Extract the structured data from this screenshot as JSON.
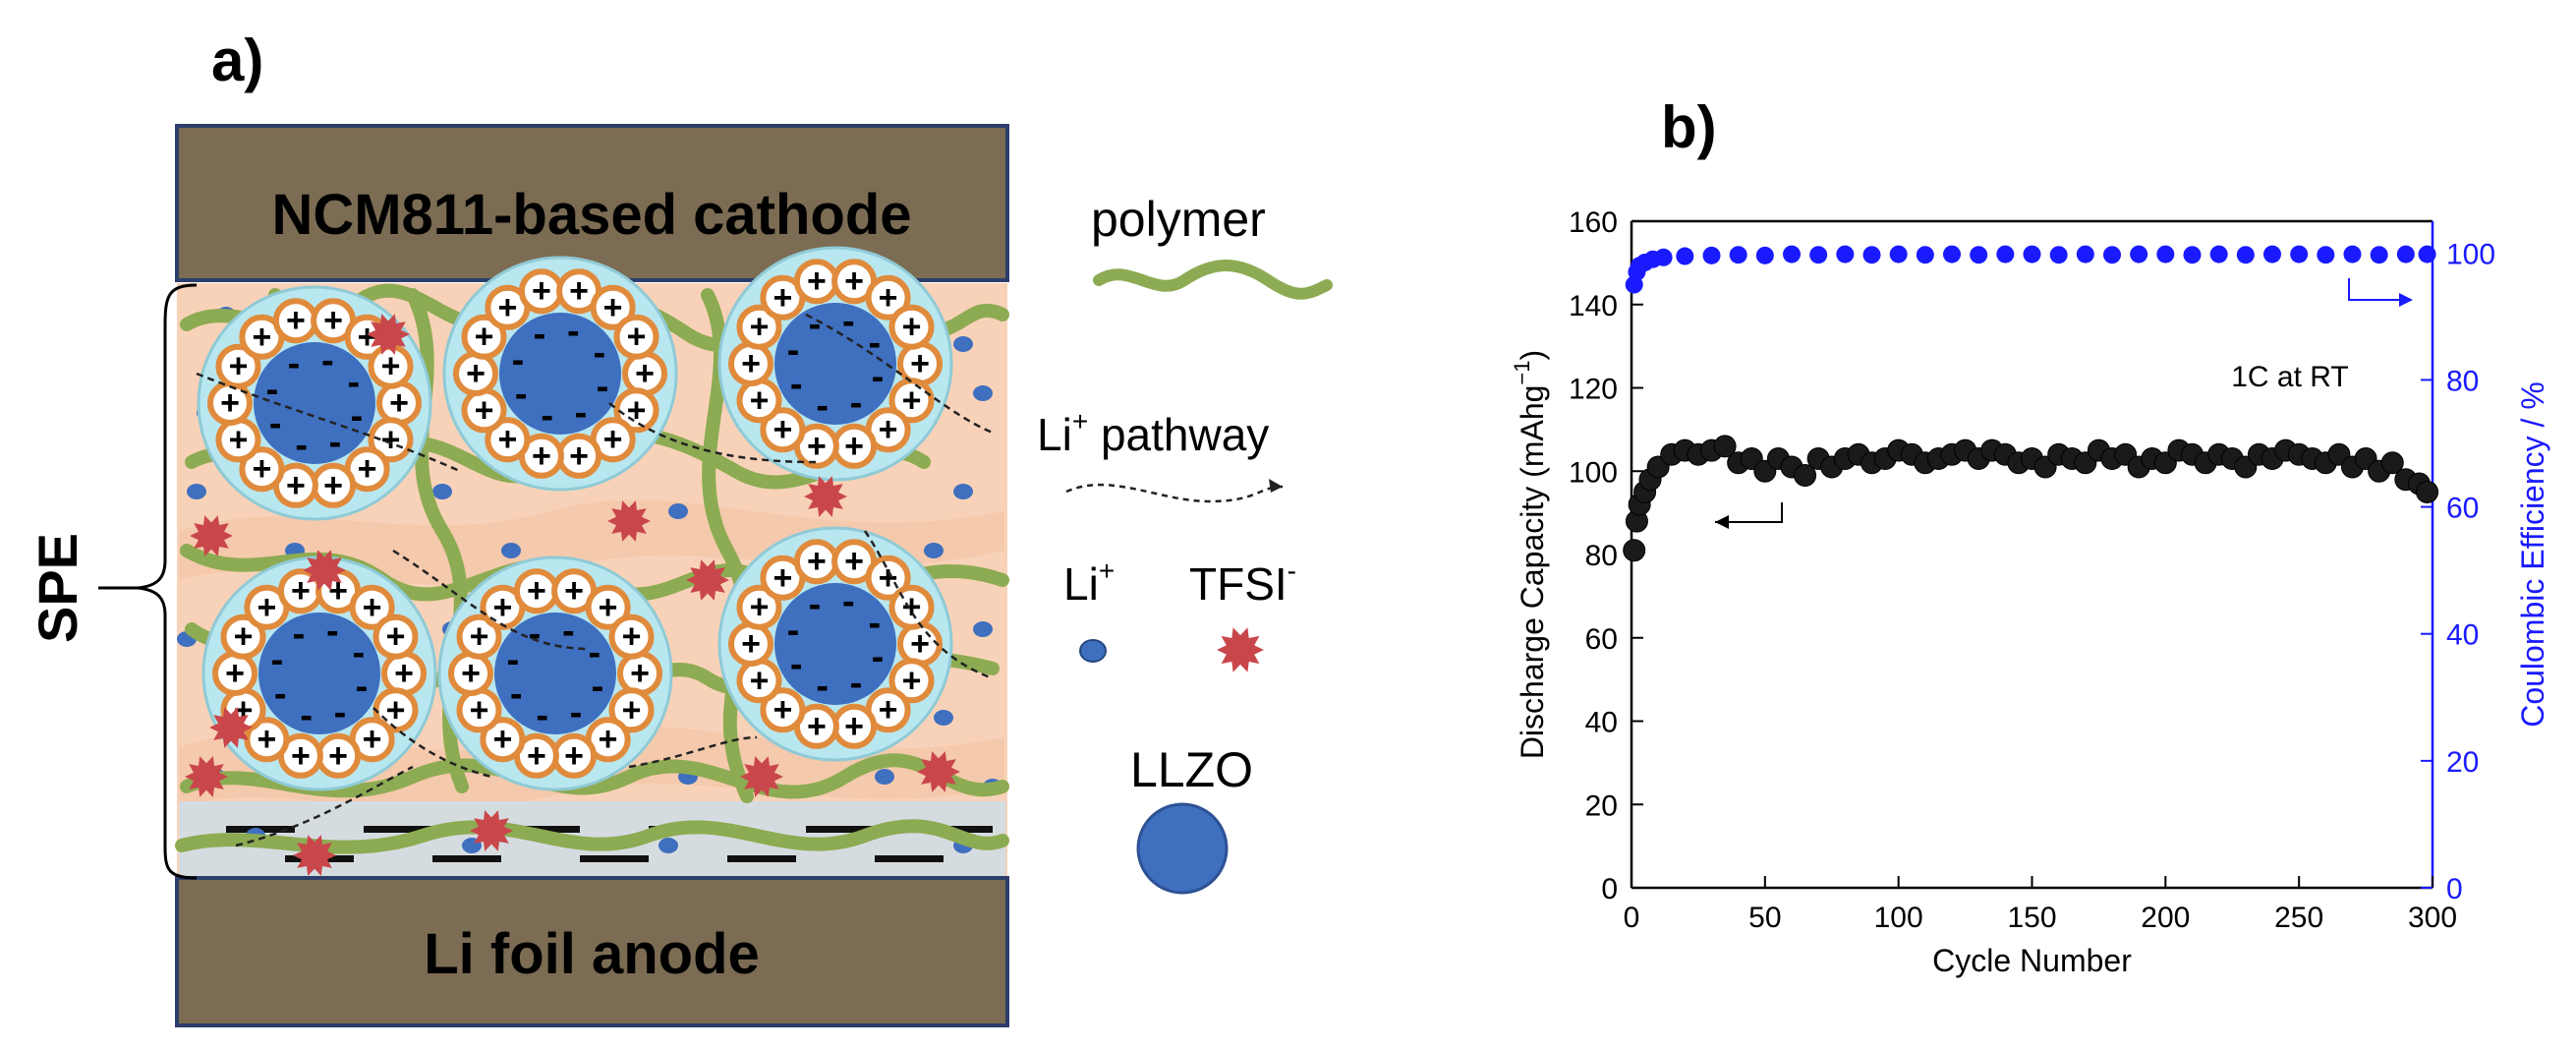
{
  "panel_a": {
    "label": "a)",
    "cathode_label": "NCM811-based cathode",
    "anode_label": "Li foil anode",
    "spe_label": "SPE",
    "legend": {
      "polymer": "polymer",
      "li_pathway_base": "Li",
      "li_pathway_sup": "+",
      "li_pathway_rest": " pathway",
      "li_ion_base": "Li",
      "li_ion_sup": "+",
      "tfsi_base": "TFSI",
      "tfsi_sup": "-",
      "llzo": "LLZO"
    },
    "particle_charge_plus": "+",
    "particle_charge_minus": "-",
    "colors": {
      "electrode": "#7b6c53",
      "electrolyte": "#f8d2b8",
      "polymer": "#8dab52",
      "llzo_core": "#3f6fbf",
      "llzo_shell": "#b9e7ef",
      "li_ion": "#3f6fbf",
      "tfsi": "#c9474b",
      "cation_ring": "#e08a3c"
    }
  },
  "panel_b": {
    "label": "b)",
    "annotation": "1C at RT",
    "colors": {
      "capacity": "#111111",
      "efficiency": "#1a1aff"
    }
  },
  "chart_data": {
    "type": "scatter",
    "title": "",
    "xlabel": "Cycle Number",
    "ylabel_left_base": "Discharge Capacity (mAhg",
    "ylabel_left_sup": "−1",
    "ylabel_left_end": ")",
    "ylabel_right": "Coulombic Efficiency / %",
    "xlim": [
      0,
      300
    ],
    "ylim_left": [
      0,
      160
    ],
    "ylim_right": [
      0,
      105
    ],
    "x_ticks": [
      "0",
      "50",
      "100",
      "150",
      "200",
      "250",
      "300"
    ],
    "y_left_ticks": [
      "0",
      "20",
      "40",
      "60",
      "80",
      "100",
      "120",
      "140",
      "160"
    ],
    "y_right_ticks": [
      "0",
      "20",
      "40",
      "60",
      "80",
      "100"
    ],
    "series": [
      {
        "name": "Discharge Capacity",
        "axis": "left",
        "x": [
          1,
          2,
          3,
          5,
          7,
          10,
          15,
          20,
          25,
          30,
          35,
          40,
          45,
          50,
          55,
          60,
          65,
          70,
          75,
          80,
          85,
          90,
          95,
          100,
          105,
          110,
          115,
          120,
          125,
          130,
          135,
          140,
          145,
          150,
          155,
          160,
          165,
          170,
          175,
          180,
          185,
          190,
          195,
          200,
          205,
          210,
          215,
          220,
          225,
          230,
          235,
          240,
          245,
          250,
          255,
          260,
          265,
          270,
          275,
          280,
          285,
          290,
          295,
          298
        ],
        "values": [
          81,
          88,
          92,
          95,
          98,
          101,
          104,
          105,
          104,
          105,
          106,
          102,
          103,
          100,
          103,
          101,
          99,
          103,
          101,
          103,
          104,
          102,
          103,
          105,
          104,
          102,
          103,
          104,
          105,
          103,
          105,
          104,
          102,
          103,
          101,
          104,
          103,
          102,
          105,
          103,
          104,
          101,
          103,
          102,
          105,
          104,
          102,
          104,
          103,
          101,
          104,
          103,
          105,
          104,
          103,
          102,
          104,
          101,
          103,
          100,
          102,
          98,
          97,
          95
        ]
      },
      {
        "name": "Coulombic Efficiency",
        "axis": "right",
        "x": [
          1,
          2,
          3,
          5,
          8,
          12,
          20,
          30,
          40,
          50,
          60,
          70,
          80,
          90,
          100,
          110,
          120,
          130,
          140,
          150,
          160,
          170,
          180,
          190,
          200,
          210,
          220,
          230,
          240,
          250,
          260,
          270,
          280,
          290,
          298
        ],
        "values": [
          95,
          97,
          98,
          98.5,
          99,
          99.3,
          99.5,
          99.6,
          99.7,
          99.6,
          99.8,
          99.7,
          99.8,
          99.7,
          99.8,
          99.7,
          99.8,
          99.7,
          99.8,
          99.8,
          99.7,
          99.8,
          99.7,
          99.8,
          99.8,
          99.7,
          99.8,
          99.7,
          99.8,
          99.8,
          99.7,
          99.8,
          99.7,
          99.8,
          99.8
        ]
      }
    ]
  }
}
